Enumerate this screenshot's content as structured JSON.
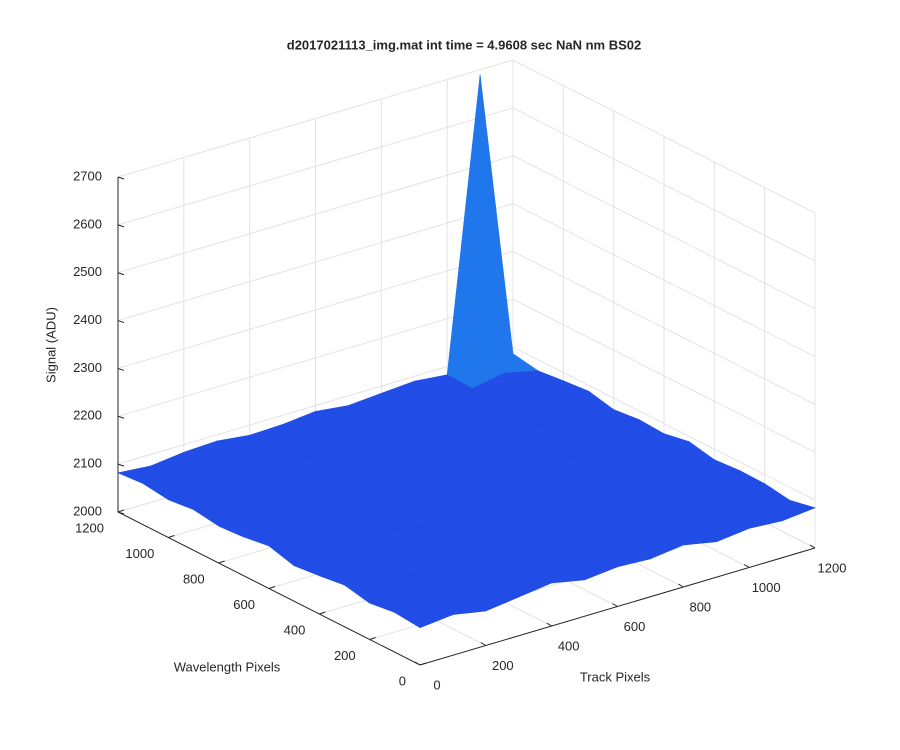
{
  "chart_data": {
    "type": "surface",
    "title": "d2017021113_img.mat int time = 4.9608 sec  NaN nm BS02",
    "xlabel": "Track Pixels",
    "ylabel": "Wavelength Pixels",
    "zlabel": "Signal (ADU)",
    "x": [
      0,
      100,
      200,
      300,
      400,
      500,
      600,
      700,
      800,
      900,
      1000,
      1100,
      1200
    ],
    "y": [
      0,
      100,
      200,
      300,
      400,
      500,
      600,
      700,
      800,
      900,
      1000,
      1100,
      1200
    ],
    "z": [
      [
        2078,
        2085,
        2072,
        2081,
        2090,
        2076,
        2083,
        2079,
        2088,
        2074,
        2082,
        2077,
        2084
      ],
      [
        2083,
        2075,
        2089,
        2079,
        2071,
        2086,
        2080,
        2092,
        2076,
        2084,
        2079,
        2087,
        2073
      ],
      [
        2076,
        2088,
        2081,
        2073,
        2085,
        2079,
        2091,
        2075,
        2083,
        2080,
        2072,
        2085,
        2081
      ],
      [
        2087,
        2079,
        2074,
        2090,
        2078,
        2083,
        2072,
        2086,
        2080,
        2077,
        2089,
        2076,
        2082
      ],
      [
        2080,
        2084,
        2091,
        2077,
        2082,
        2075,
        2088,
        2081,
        2073,
        2090,
        2079,
        2083,
        2078
      ],
      [
        2074,
        2081,
        2078,
        2086,
        2073,
        2092,
        2079,
        2084,
        2087,
        2076,
        2082,
        2080,
        2089
      ],
      [
        2089,
        2077,
        2083,
        2080,
        2088,
        2078,
        2085,
        2074,
        2082,
        2091,
        2075,
        2086,
        2079
      ],
      [
        2081,
        2090,
        2076,
        2084,
        2079,
        2087,
        2073,
        2089,
        2078,
        2083,
        2088,
        2074,
        2082
      ],
      [
        2077,
        2082,
        2087,
        2075,
        2091,
        2080,
        2084,
        2078,
        2090,
        2079,
        2081,
        2089,
        2076
      ],
      [
        2085,
        2074,
        2080,
        2089,
        2076,
        2083,
        2090,
        2077,
        2081,
        2086,
        2073,
        2080,
        2088
      ],
      [
        2079,
        2088,
        2075,
        2082,
        2086,
        2074,
        2081,
        2092,
        2076,
        2084,
        2090,
        2078,
        2083
      ],
      [
        2086,
        2080,
        2091,
        2078,
        2083,
        2089,
        2076,
        2082,
        2088,
        2075,
        2081,
        2093,
        2077
      ],
      [
        2082,
        2076,
        2084,
        2087,
        2079,
        2081,
        2088,
        2080,
        2085,
        2090,
        2083,
        2690,
        2086
      ]
    ],
    "xlim": [
      0,
      1200
    ],
    "xticks": [
      0,
      200,
      400,
      600,
      800,
      1000,
      1200
    ],
    "ylim": [
      0,
      1200
    ],
    "yticks": [
      0,
      200,
      400,
      600,
      800,
      1000,
      1200
    ],
    "zlim": [
      2000,
      2700
    ],
    "zticks": [
      2000,
      2100,
      2200,
      2300,
      2400,
      2500,
      2600,
      2700
    ],
    "colormap": [
      "#1a3fd8",
      "#2a5cf5",
      "#0fa5d8",
      "#80cb58",
      "#f9fb0e"
    ],
    "grid": true
  }
}
